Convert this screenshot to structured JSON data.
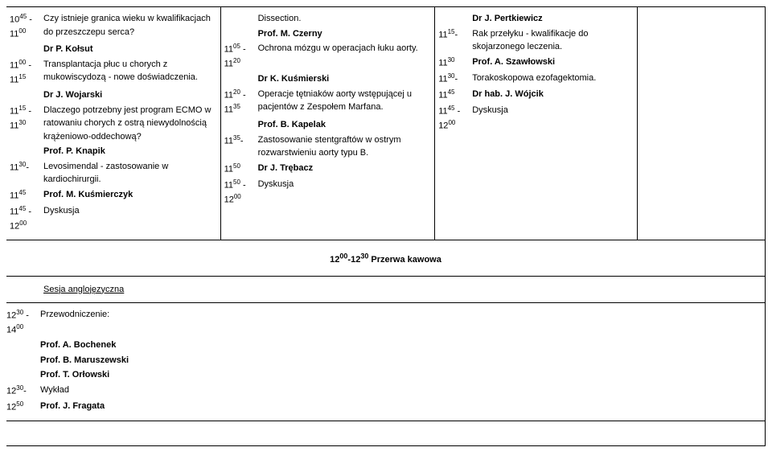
{
  "col1": {
    "entries": [
      {
        "time_a": "10",
        "time_a_sup": "45",
        "time_b": "11",
        "time_b_sup": "00",
        "dash": " - ",
        "text": "Czy istnieje granica wieku w kwalifikacjach do przeszczepu serca?"
      },
      {
        "time_a": "",
        "time_a_sup": "",
        "time_b": "",
        "time_b_sup": "",
        "dash": "",
        "text": "Dr P. Kołsut",
        "bold": true,
        "indent": true
      },
      {
        "time_a": "11",
        "time_a_sup": "00",
        "time_b": "11",
        "time_b_sup": "15",
        "dash": " - ",
        "text": "Transplantacja płuc u chorych z mukowiscydozą - nowe doświadczenia."
      },
      {
        "time_a": "",
        "time_a_sup": "",
        "time_b": "",
        "time_b_sup": "",
        "dash": "",
        "text": "Dr J. Wojarski",
        "bold": true,
        "indent": true
      },
      {
        "time_a": "11",
        "time_a_sup": "15",
        "time_b": "11",
        "time_b_sup": "30",
        "dash": " - ",
        "text": "Dlaczego potrzebny jest program ECMO w ratowaniu chorych z ostrą niewydolnością krążeniowo-oddechową?"
      },
      {
        "time_a": "",
        "time_a_sup": "",
        "time_b": "",
        "time_b_sup": "",
        "dash": "",
        "text": "Prof. P. Knapik",
        "bold": true,
        "indent": true
      },
      {
        "time_a": "11",
        "time_a_sup": "30",
        "time_b": "",
        "time_b_sup": "",
        "dash": " - ",
        "text": "Levosimendal - zastosowanie w kardiochirurgii."
      },
      {
        "time_a": "11",
        "time_a_sup": "45",
        "time_b": "",
        "time_b_sup": "",
        "dash": "",
        "text": "Prof. M. Kuśmierczyk",
        "bold": true
      },
      {
        "time_a": "11",
        "time_a_sup": "45",
        "time_b": "12",
        "time_b_sup": "00",
        "dash": " - ",
        "text": "Dyskusja"
      }
    ]
  },
  "col2": {
    "entries": [
      {
        "time_a": "",
        "time_a_sup": "",
        "time_b": "",
        "time_b_sup": "",
        "dash": "",
        "text": "Dissection.",
        "indent": true
      },
      {
        "time_a": "",
        "time_a_sup": "",
        "time_b": "",
        "time_b_sup": "",
        "dash": "",
        "text": "Prof. M. Czerny",
        "bold": true,
        "indent": true
      },
      {
        "time_a": "11",
        "time_a_sup": "05",
        "time_b": "11",
        "time_b_sup": "20",
        "dash": " - ",
        "text": "Ochrona mózgu w operacjach łuku aorty."
      },
      {
        "time_a": "",
        "time_a_sup": "",
        "time_b": "",
        "time_b_sup": "",
        "dash": "",
        "text": "Dr K. Kuśmierski",
        "bold": true,
        "indent": true
      },
      {
        "time_a": "11",
        "time_a_sup": "20",
        "time_b": "11",
        "time_b_sup": "35",
        "dash": " - ",
        "text": "Operacje tętniaków aorty wstępującej u pacjentów z Zespołem Marfana."
      },
      {
        "time_a": "",
        "time_a_sup": "",
        "time_b": "",
        "time_b_sup": "",
        "dash": "",
        "text": "Prof. B. Kapelak",
        "bold": true,
        "indent": true
      },
      {
        "time_a": "11",
        "time_a_sup": "35",
        "time_b": "",
        "time_b_sup": "",
        "dash": " - ",
        "text": "Zastosowanie stentgraftów w ostrym rozwarstwieniu aorty typu B."
      },
      {
        "time_a": "11",
        "time_a_sup": "50",
        "time_b": "",
        "time_b_sup": "",
        "dash": "",
        "text": "Dr J. Trębacz",
        "bold": true
      },
      {
        "time_a": "11",
        "time_a_sup": "50",
        "time_b": "12",
        "time_b_sup": "00",
        "dash": " - ",
        "text": "Dyskusja"
      }
    ]
  },
  "col3": {
    "entries": [
      {
        "time_a": "",
        "time_a_sup": "",
        "time_b": "",
        "time_b_sup": "",
        "dash": "",
        "text": "Dr J. Pertkiewicz",
        "bold": true,
        "indent": true
      },
      {
        "time_a": "11",
        "time_a_sup": "15",
        "time_b": "",
        "time_b_sup": "",
        "dash": " - ",
        "text": "Rak przełyku - kwalifikacje do skojarzonego leczenia."
      },
      {
        "time_a": "11",
        "time_a_sup": "30",
        "time_b": "",
        "time_b_sup": "",
        "dash": "",
        "text": "Prof. A. Szawłowski",
        "bold": true
      },
      {
        "time_a": "11",
        "time_a_sup": "30",
        "time_b": "",
        "time_b_sup": "",
        "dash": " - ",
        "text": "Torakoskopowa ezofagektomia."
      },
      {
        "time_a": "11",
        "time_a_sup": "45",
        "time_b": "",
        "time_b_sup": "",
        "dash": "",
        "text": "Dr hab. J. Wójcik",
        "bold": true
      },
      {
        "time_a": "11",
        "time_a_sup": "45",
        "time_b": "12",
        "time_b_sup": "00",
        "dash": " - ",
        "text": "Dyskusja"
      }
    ]
  },
  "break_text_prefix": "12",
  "break_sup1": "00",
  "break_mid": "-12",
  "break_sup2": "30",
  "break_suffix": " Przerwa kawowa",
  "session_label": "Sesja anglojęzyczna",
  "chair": {
    "entries": [
      {
        "time_a": "12",
        "time_a_sup": "30",
        "time_b": "14",
        "time_b_sup": "00",
        "dash": " - ",
        "text": "Przewodniczenie:"
      },
      {
        "time_a": "",
        "time_a_sup": "",
        "time_b": "",
        "time_b_sup": "",
        "dash": "",
        "text": "Prof. A. Bochenek",
        "bold": true,
        "indent": true
      },
      {
        "time_a": "",
        "time_a_sup": "",
        "time_b": "",
        "time_b_sup": "",
        "dash": "",
        "text": "Prof. B. Maruszewski",
        "bold": true,
        "indent": true
      },
      {
        "time_a": "",
        "time_a_sup": "",
        "time_b": "",
        "time_b_sup": "",
        "dash": "",
        "text": "Prof. T. Orłowski",
        "bold": true,
        "indent": true
      },
      {
        "time_a": "12",
        "time_a_sup": "30",
        "time_b": "",
        "time_b_sup": "",
        "dash": " - ",
        "text": "Wykład"
      },
      {
        "time_a": "12",
        "time_a_sup": "50",
        "time_b": "",
        "time_b_sup": "",
        "dash": "",
        "text": "Prof. J. Fragata",
        "bold": true
      }
    ]
  }
}
